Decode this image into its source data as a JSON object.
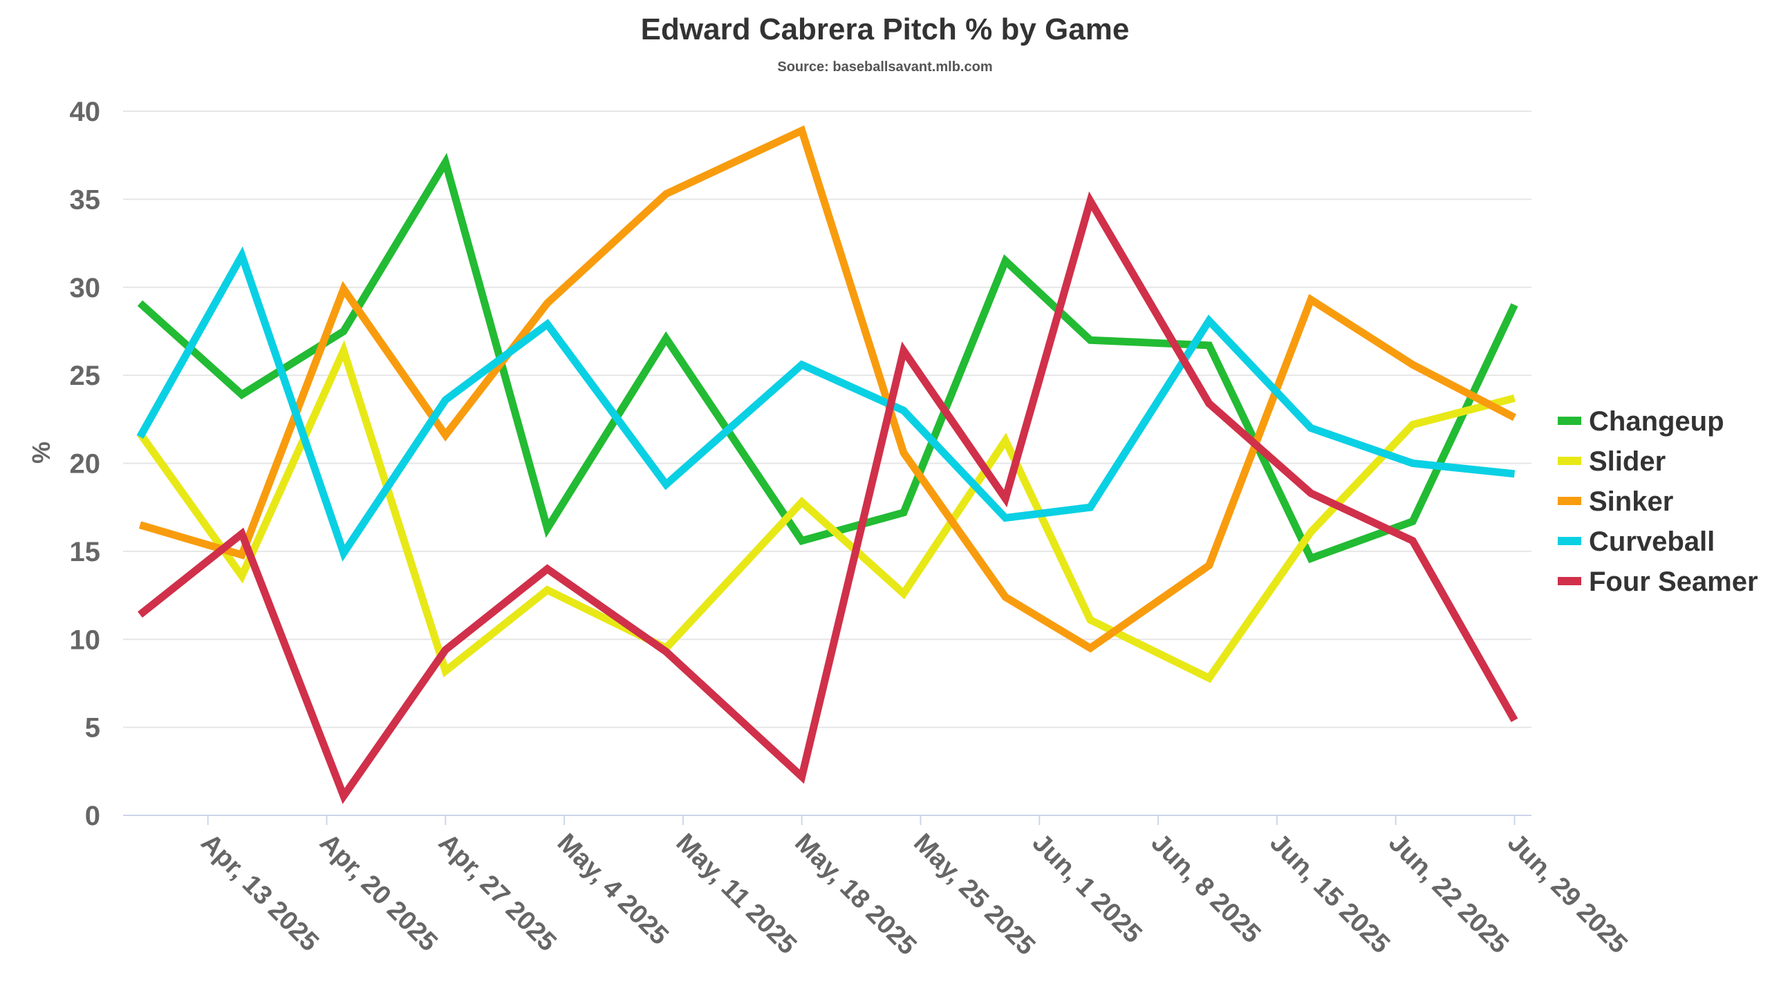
{
  "chart_data": {
    "type": "line",
    "title": "Edward Cabrera Pitch % by Game",
    "subtitle": "Source: baseballsavant.mlb.com",
    "xlabel": "",
    "ylabel": "%",
    "ylim": [
      0,
      40
    ],
    "yticks": [
      0,
      5,
      10,
      15,
      20,
      25,
      30,
      35,
      40
    ],
    "xlim": [
      "2025-04-08",
      "2025-06-30"
    ],
    "xticks": [
      "2025-04-13",
      "2025-04-20",
      "2025-04-27",
      "2025-05-04",
      "2025-05-11",
      "2025-05-18",
      "2025-05-25",
      "2025-06-01",
      "2025-06-08",
      "2025-06-15",
      "2025-06-22",
      "2025-06-29"
    ],
    "xtick_labels": [
      "Apr, 13 2025",
      "Apr, 20 2025",
      "Apr, 27 2025",
      "May, 4 2025",
      "May, 11 2025",
      "May, 18 2025",
      "May, 25 2025",
      "Jun, 1 2025",
      "Jun, 8 2025",
      "Jun, 15 2025",
      "Jun, 22 2025",
      "Jun, 29 2025"
    ],
    "x": [
      "2025-04-09",
      "2025-04-15",
      "2025-04-21",
      "2025-04-27",
      "2025-05-03",
      "2025-05-10",
      "2025-05-18",
      "2025-05-24",
      "2025-05-30",
      "2025-06-04",
      "2025-06-11",
      "2025-06-17",
      "2025-06-23",
      "2025-06-29"
    ],
    "grid": true,
    "legend_position": "right",
    "series": [
      {
        "name": "Changeup",
        "color": "#22bb33",
        "values": [
          29.1,
          23.9,
          27.5,
          37.1,
          16.3,
          27.1,
          15.6,
          17.2,
          31.5,
          27.0,
          26.7,
          14.6,
          16.7,
          29.0
        ]
      },
      {
        "name": "Slider",
        "color": "#e8e817",
        "values": [
          21.7,
          13.6,
          26.4,
          8.2,
          12.8,
          9.5,
          17.8,
          12.6,
          21.3,
          11.1,
          7.8,
          16.1,
          22.2,
          23.7
        ]
      },
      {
        "name": "Sinker",
        "color": "#f89c0e",
        "values": [
          16.5,
          14.8,
          29.9,
          21.6,
          29.1,
          35.3,
          38.9,
          20.6,
          12.4,
          9.5,
          14.2,
          29.3,
          25.6,
          22.6
        ]
      },
      {
        "name": "Curveball",
        "color": "#0ad0e4",
        "values": [
          21.5,
          31.8,
          14.9,
          23.6,
          27.9,
          18.8,
          25.6,
          23.0,
          16.9,
          17.5,
          28.1,
          22.0,
          20.0,
          19.4
        ]
      },
      {
        "name": "Four Seamer",
        "color": "#d0304a",
        "values": [
          11.4,
          16.0,
          1.1,
          9.4,
          14.0,
          9.3,
          2.2,
          26.4,
          18.0,
          34.9,
          23.4,
          18.3,
          15.6,
          5.4
        ]
      }
    ]
  }
}
